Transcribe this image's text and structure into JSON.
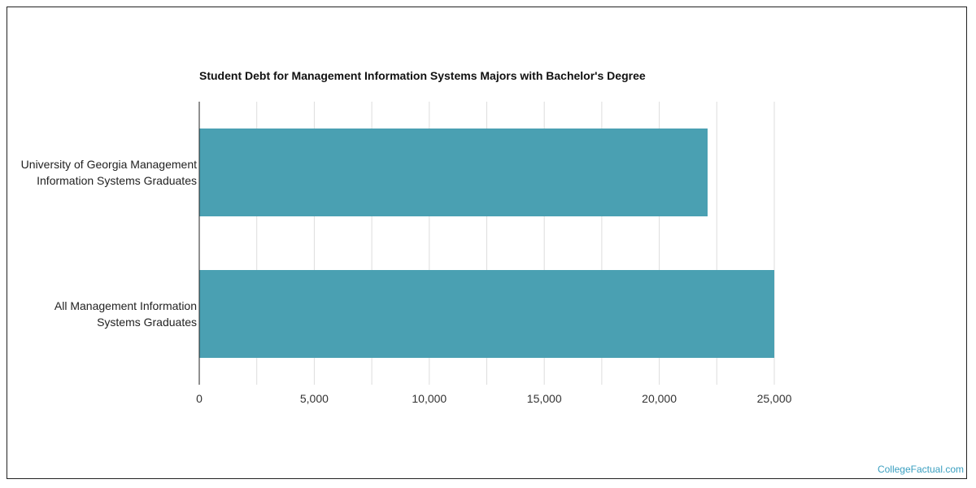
{
  "chart_data": {
    "type": "bar",
    "orientation": "horizontal",
    "title": "Student Debt for Management Information Systems Majors with Bachelor's Degree",
    "categories": [
      [
        "University of Georgia Management",
        "Information Systems Graduates"
      ],
      [
        "All Management Information",
        "Systems Graduates"
      ]
    ],
    "values": [
      22100,
      25000
    ],
    "xlim": [
      0,
      25000
    ],
    "xticks": [
      0,
      5000,
      10000,
      15000,
      20000,
      25000
    ],
    "xtick_labels": [
      "0",
      "5,000",
      "10,000",
      "15,000",
      "20,000",
      "25,000"
    ],
    "grid": true,
    "bar_color": "#4aa0b2",
    "xlabel": "",
    "ylabel": ""
  },
  "watermark": "CollegeFactual.com"
}
